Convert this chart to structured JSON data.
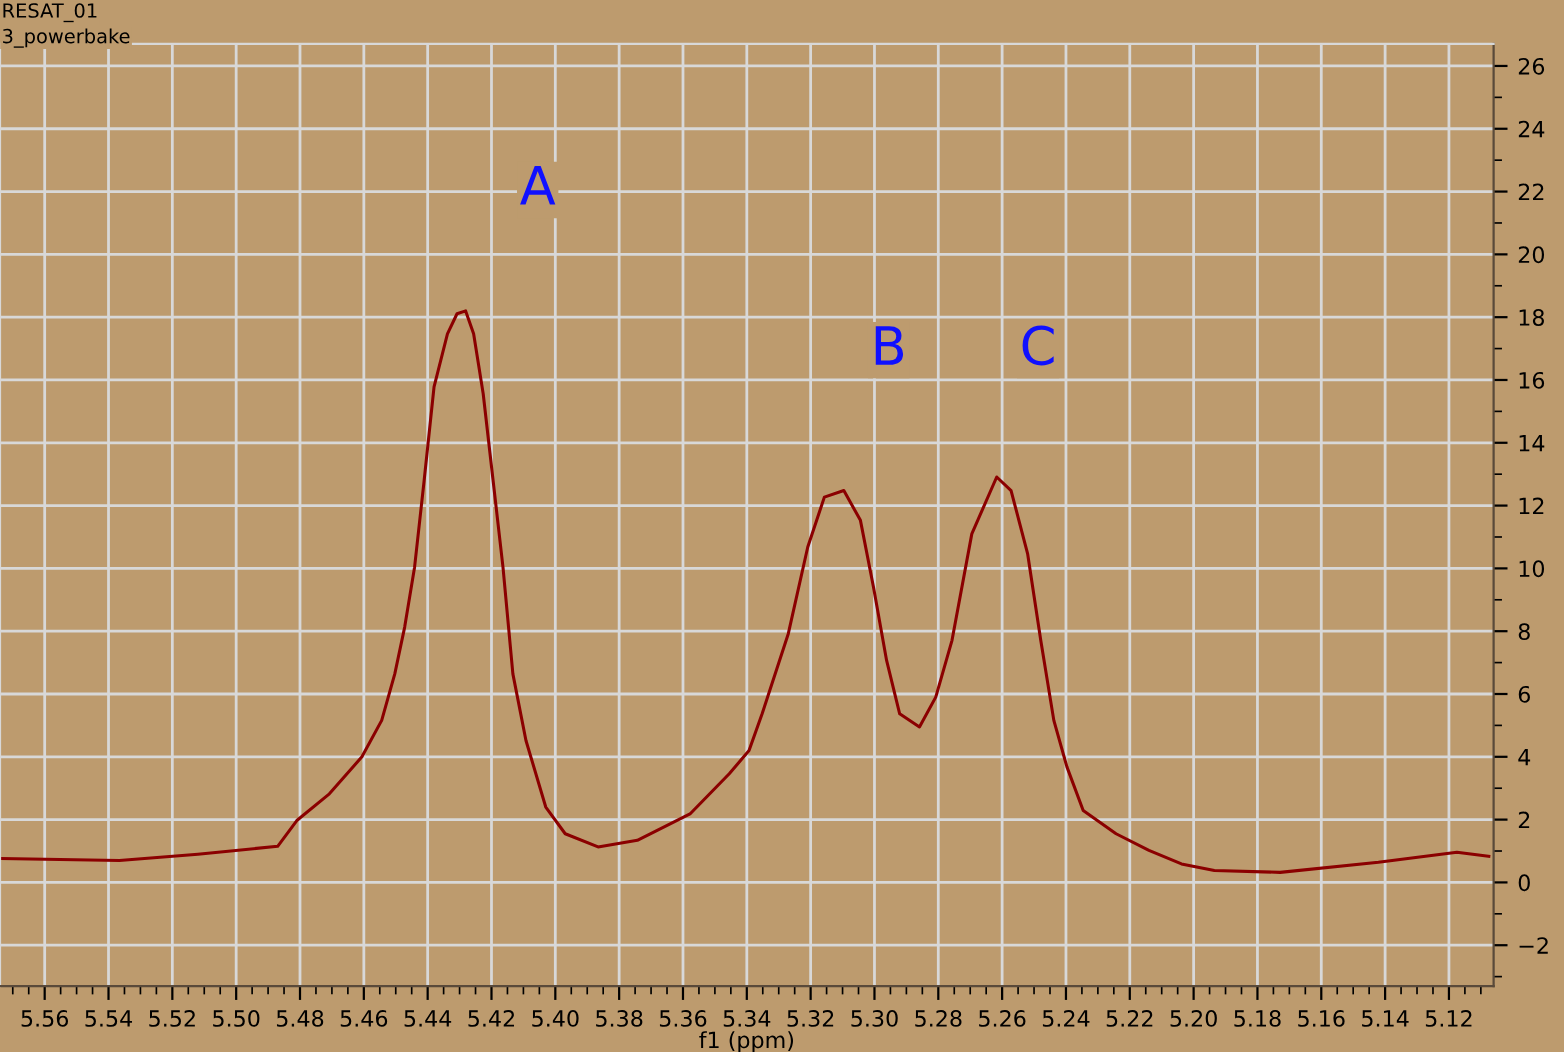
{
  "chart_data": {
    "type": "line",
    "xlabel": "f1 (ppm)",
    "annotations": [
      "RESAT_01",
      "3_powerbake",
      "A",
      "B",
      "C"
    ],
    "series": [
      {
        "color": "#8b0000",
        "x": [
          5.5736,
          5.5366,
          5.512,
          5.487,
          5.481,
          5.4708,
          5.4606,
          5.4544,
          5.4503,
          5.4472,
          5.4441,
          5.4411,
          5.438,
          5.4338,
          5.4308,
          5.4281,
          5.4256,
          5.4226,
          5.4195,
          5.4164,
          5.4133,
          5.4092,
          5.403,
          5.3969,
          5.3866,
          5.3743,
          5.3578,
          5.3455,
          5.3393,
          5.3352,
          5.327,
          5.3209,
          5.3157,
          5.3096,
          5.3044,
          5.3003,
          5.2962,
          5.2921,
          5.2859,
          5.2808,
          5.2757,
          5.2695,
          5.2617,
          5.2572,
          5.252,
          5.2479,
          5.2438,
          5.2397,
          5.2346,
          5.2243,
          5.214,
          5.2038,
          5.1935,
          5.1729,
          5.1421,
          5.1175,
          5.1075
        ],
        "values": [
          0.76,
          0.7,
          0.9,
          1.15,
          1.97,
          2.82,
          4.0,
          5.16,
          6.64,
          8.13,
          10.04,
          12.8,
          15.78,
          17.47,
          18.11,
          18.2,
          17.47,
          15.56,
          12.8,
          10.04,
          6.64,
          4.52,
          2.4,
          1.55,
          1.13,
          1.34,
          2.18,
          3.46,
          4.2,
          5.37,
          7.92,
          10.68,
          12.27,
          12.48,
          11.53,
          9.4,
          7.07,
          5.37,
          4.95,
          5.9,
          7.71,
          11.1,
          12.91,
          12.48,
          10.46,
          7.71,
          5.16,
          3.68,
          2.29,
          1.55,
          1.02,
          0.59,
          0.38,
          0.32,
          0.64,
          0.96,
          0.83
        ]
      }
    ],
    "xlim": [
      5.574,
      5.106
    ],
    "xticks": [
      5.56,
      5.54,
      5.52,
      {
        "value": 5.5,
        "label": "5.50"
      },
      5.48,
      5.46,
      5.44,
      5.42,
      {
        "value": 5.4,
        "label": "5.40"
      },
      5.38,
      5.36,
      5.34,
      5.32,
      {
        "value": 5.3,
        "label": "5.30"
      },
      5.28,
      5.26,
      5.24,
      5.22,
      {
        "value": 5.2,
        "label": "5.20"
      },
      5.18,
      5.16,
      5.14,
      5.12
    ],
    "ylim": [
      -3.3,
      26.7
    ],
    "yticks": [
      -2,
      0,
      2,
      4,
      6,
      8,
      10,
      12,
      14,
      16,
      18,
      20,
      22,
      24,
      26
    ],
    "grid": true,
    "line_style": "solid"
  }
}
